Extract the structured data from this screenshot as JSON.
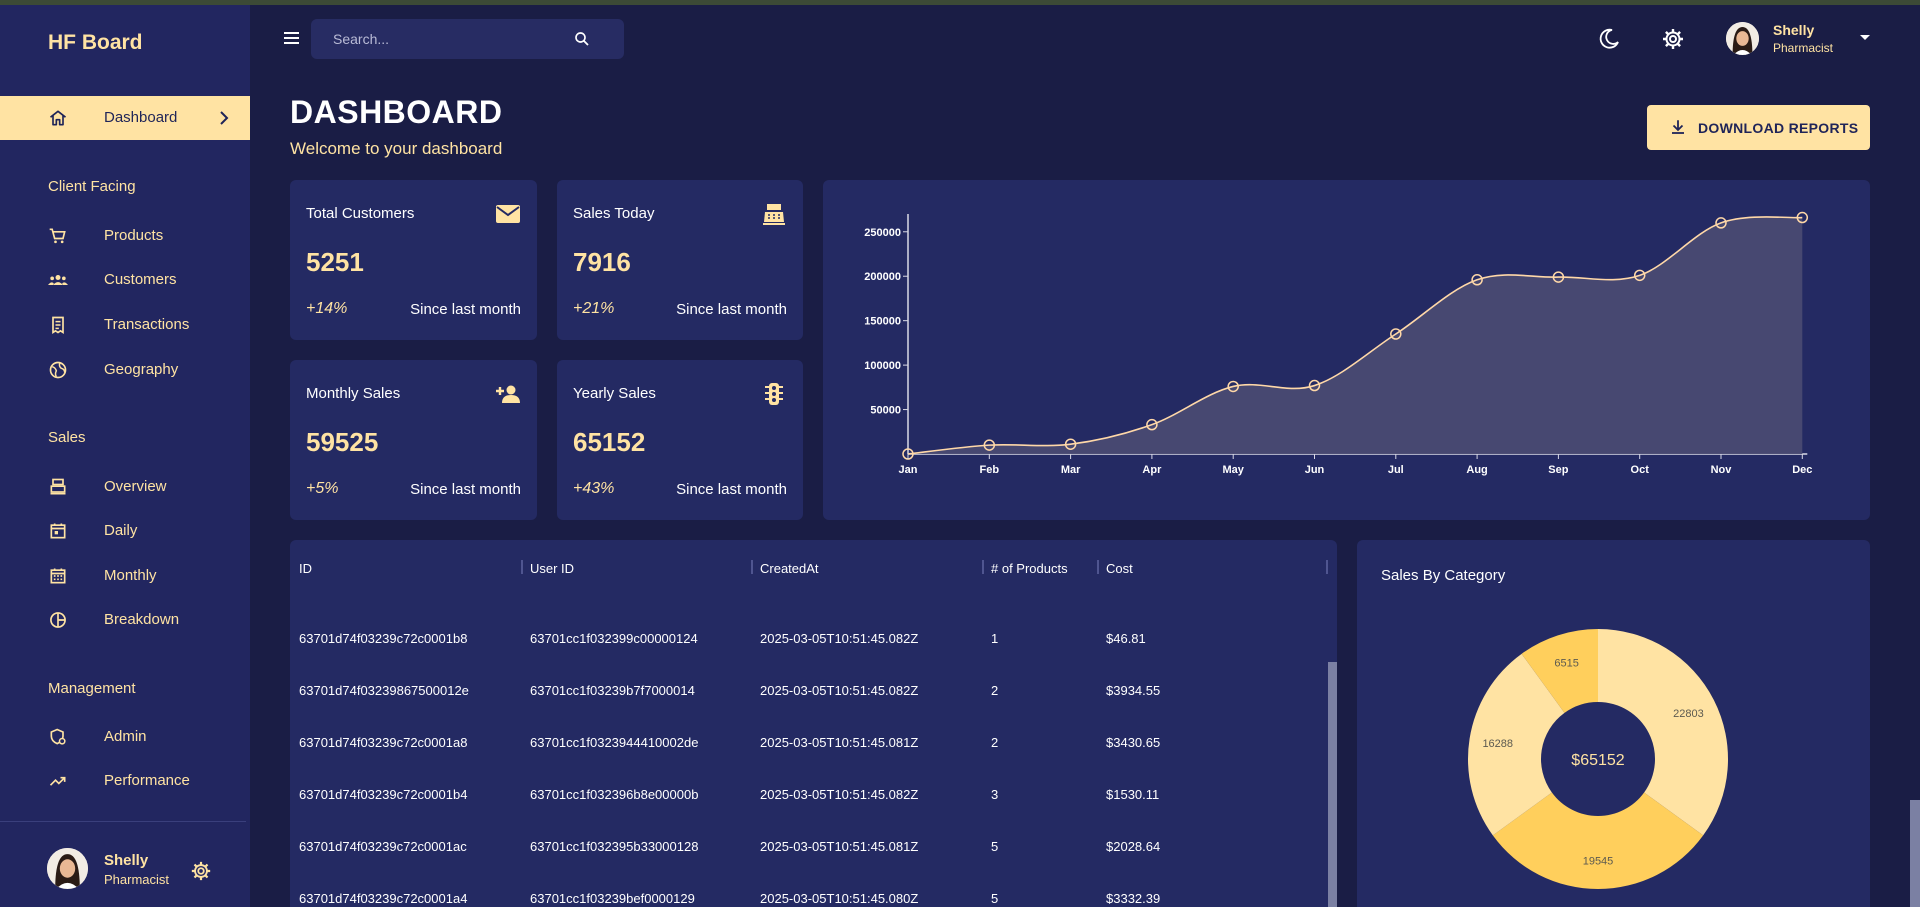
{
  "sidebar": {
    "brand": "HF Board",
    "active": {
      "label": "Dashboard",
      "icon": "home-icon"
    },
    "sections": [
      {
        "label": "Client Facing",
        "items": [
          {
            "label": "Products",
            "icon": "cart-icon"
          },
          {
            "label": "Customers",
            "icon": "group-icon"
          },
          {
            "label": "Transactions",
            "icon": "receipt-icon"
          },
          {
            "label": "Geography",
            "icon": "globe-icon"
          }
        ]
      },
      {
        "label": "Sales",
        "items": [
          {
            "label": "Overview",
            "icon": "register-icon"
          },
          {
            "label": "Daily",
            "icon": "calendar-day-icon"
          },
          {
            "label": "Monthly",
            "icon": "calendar-month-icon"
          },
          {
            "label": "Breakdown",
            "icon": "pie-icon"
          }
        ]
      },
      {
        "label": "Management",
        "items": [
          {
            "label": "Admin",
            "icon": "admin-icon"
          },
          {
            "label": "Performance",
            "icon": "trending-icon"
          }
        ]
      }
    ],
    "user": {
      "name": "Shelly",
      "role": "Pharmacist"
    }
  },
  "topbar": {
    "search_placeholder": "Search...",
    "user": {
      "name": "Shelly",
      "role": "Pharmacist"
    }
  },
  "header": {
    "title": "DASHBOARD",
    "subtitle": "Welcome to your dashboard",
    "download_label": "DOWNLOAD REPORTS"
  },
  "stats": [
    {
      "title": "Total Customers",
      "value": "5251",
      "change": "+14%",
      "since": "Since last month",
      "icon": "mail-icon"
    },
    {
      "title": "Sales Today",
      "value": "7916",
      "change": "+21%",
      "since": "Since last month",
      "icon": "cash-register-icon"
    },
    {
      "title": "Monthly Sales",
      "value": "59525",
      "change": "+5%",
      "since": "Since last month",
      "icon": "person-add-icon"
    },
    {
      "title": "Yearly Sales",
      "value": "65152",
      "change": "+43%",
      "since": "Since last month",
      "icon": "traffic-icon"
    }
  ],
  "table": {
    "columns": [
      "ID",
      "User ID",
      "CreatedAt",
      "# of Products",
      "Cost"
    ],
    "rows": [
      [
        "63701d74f03239c72c0001b8",
        "63701cc1f032399c00000124",
        "2025-03-05T10:51:45.082Z",
        "1",
        "$46.81"
      ],
      [
        "63701d74f03239867500012e",
        "63701cc1f03239b7f7000014",
        "2025-03-05T10:51:45.082Z",
        "2",
        "$3934.55"
      ],
      [
        "63701d74f03239c72c0001a8",
        "63701cc1f0323944410002de",
        "2025-03-05T10:51:45.081Z",
        "2",
        "$3430.65"
      ],
      [
        "63701d74f03239c72c0001b4",
        "63701cc1f032396b8e00000b",
        "2025-03-05T10:51:45.082Z",
        "3",
        "$1530.11"
      ],
      [
        "63701d74f03239c72c0001ac",
        "63701cc1f032395b33000128",
        "2025-03-05T10:51:45.081Z",
        "5",
        "$2028.64"
      ],
      [
        "63701d74f03239c72c0001a4",
        "63701cc1f03239bef0000129",
        "2025-03-05T10:51:45.080Z",
        "5",
        "$3332.39"
      ]
    ]
  },
  "donut": {
    "title": "Sales By Category",
    "center_label": "$65152"
  },
  "chart_data": [
    {
      "type": "area",
      "title": "",
      "xlabel": "",
      "ylabel": "",
      "categories": [
        "Jan",
        "Feb",
        "Mar",
        "Apr",
        "May",
        "Jun",
        "Jul",
        "Aug",
        "Sep",
        "Oct",
        "Nov",
        "Dec"
      ],
      "values": [
        0,
        10000,
        11000,
        33000,
        76000,
        77000,
        135000,
        196000,
        199000,
        201000,
        260000,
        266000
      ],
      "yticks": [
        50000,
        100000,
        150000,
        200000,
        250000
      ],
      "ylim": [
        0,
        270000
      ],
      "grid": false,
      "color": "#ffd8a8"
    },
    {
      "type": "pie",
      "title": "Sales By Category",
      "slices": [
        {
          "label": "22803",
          "value": 22803,
          "color": "#ffe3a3"
        },
        {
          "label": "19545",
          "value": 19545,
          "color": "#ffcf5c"
        },
        {
          "label": "16288",
          "value": 16288,
          "color": "#ffe3a3"
        },
        {
          "label": "6515",
          "value": 6515,
          "color": "#ffcf5c"
        }
      ],
      "center": "$65152"
    }
  ]
}
